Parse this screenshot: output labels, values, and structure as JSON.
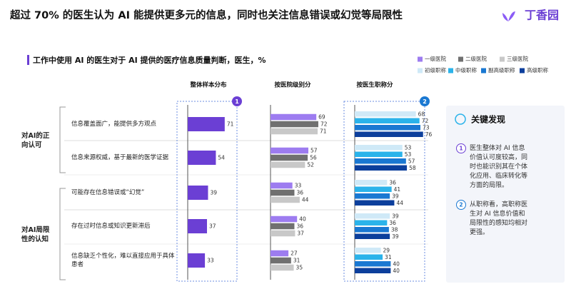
{
  "header": {
    "title": "超过 70% 的医生认为 AI 能提供更多元的信息，同时也关注信息错误或幻觉等局限性",
    "logo": "丁香园"
  },
  "chart_data": {
    "type": "bar",
    "orientation": "horizontal",
    "title": "工作中使用 AI 的医生对于 AI 提供的医疗信息质量判断，医生，%",
    "category_groups": [
      "对AI的正向认可",
      "对AI局限性的认知"
    ],
    "categories": [
      "信息覆盖面广，能提供多方观点",
      "信息来源权威，基于最新的医学证据",
      "可能存在信息错误或“幻觉”",
      "存在过时信息或知识更新滞后",
      "信息缺乏个性化，难以直接应用于具体患者"
    ],
    "panels": [
      {
        "title": "整体样本分布",
        "badge": 1,
        "xlim": [
          0,
          100
        ],
        "series": [
          {
            "color": "#6b3fd4",
            "values": [
              71,
              54,
              39,
              37,
              33
            ]
          }
        ]
      },
      {
        "title": "按医院级别分",
        "xlim": [
          0,
          100
        ],
        "series": [
          {
            "name": "一级医院",
            "color": "#9d7cf0",
            "values": [
              69,
              57,
              33,
              40,
              27
            ]
          },
          {
            "name": "二级医院",
            "color": "#707070",
            "values": [
              72,
              56,
              36,
              36,
              31
            ]
          },
          {
            "name": "三级医院",
            "color": "#c8c8c8",
            "values": [
              71,
              52,
              44,
              37,
              35
            ]
          }
        ]
      },
      {
        "title": "按医生职称分",
        "badge": 2,
        "xlim": [
          0,
          100
        ],
        "series": [
          {
            "name": "初级职称",
            "color": "#cfe9f7",
            "values": [
              68,
              53,
              36,
              39,
              29
            ]
          },
          {
            "name": "中级职称",
            "color": "#2bb3ea",
            "values": [
              72,
              53,
              41,
              36,
              31
            ]
          },
          {
            "name": "副高级职称",
            "color": "#1a78d2",
            "values": [
              73,
              57,
              39,
              38,
              40
            ]
          },
          {
            "name": "高级职称",
            "color": "#0c3f9c",
            "values": [
              76,
              58,
              44,
              39,
              40
            ]
          }
        ]
      }
    ]
  },
  "key_findings": {
    "title": "关键发现",
    "items": [
      {
        "number": 1,
        "text": "医生整体对 AI 信息价值认可度较高，同时也能识别其在个体化应用、临床转化等方面的局限。"
      },
      {
        "number": 2,
        "text": "从职称看，高职称医生对 AI 信息价值和局限性的感知均相对更强。"
      }
    ]
  }
}
